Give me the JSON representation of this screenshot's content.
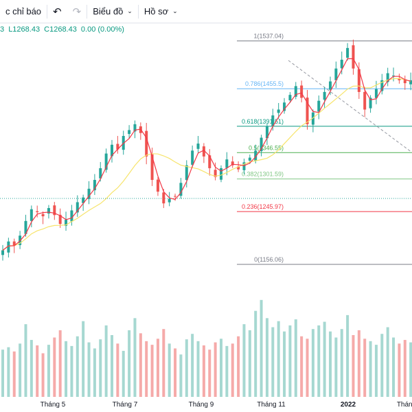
{
  "toolbar": {
    "indicators_label": "c chỉ báo",
    "undo_icon": "undo-icon",
    "redo_icon": "redo-icon",
    "chart_label": "Biểu đồ",
    "profile_label": "Hồ sơ"
  },
  "ohlc": {
    "prefix": "3",
    "low": "L1268.43",
    "close": "C1268.43",
    "change": "0.00 (0.00%)"
  },
  "colors": {
    "up": "#26a69a",
    "down": "#ef5350",
    "ma_fast": "#f23645",
    "ma_slow": "#f7e46b",
    "fib_1": "#787b86",
    "fib_0786": "#64b5f6",
    "fib_0618": "#089981",
    "fib_05": "#4caf50",
    "fib_0382": "#81c784",
    "fib_0236": "#f23645",
    "fib_0": "#787b86"
  },
  "fib_levels": [
    {
      "label": "1(1537.04)",
      "value": 1537.04,
      "key": "fib_1"
    },
    {
      "label": "0.786(1455.5)",
      "value": 1455.5,
      "key": "fib_0786"
    },
    {
      "label": "0.618(1391.51)",
      "value": 1391.51,
      "key": "fib_0618"
    },
    {
      "label": "0.5(1346.55)",
      "value": 1346.55,
      "key": "fib_05"
    },
    {
      "label": "0.382(1301.59)",
      "value": 1301.59,
      "key": "fib_0382"
    },
    {
      "label": "0.236(1245.97)",
      "value": 1245.97,
      "key": "fib_0236"
    },
    {
      "label": "0(1156.06)",
      "value": 1156.06,
      "key": "fib_0"
    }
  ],
  "x_axis": [
    "Tháng 5",
    "Tháng 7",
    "Tháng 9",
    "Tháng 11",
    "2022",
    "Tháng"
  ],
  "chart_data": {
    "type": "candlestick",
    "y_range": [
      1115,
      1560
    ],
    "price_series": [
      1180,
      1195,
      1188,
      1205,
      1230,
      1250,
      1245,
      1238,
      1252,
      1240,
      1225,
      1232,
      1248,
      1262,
      1270,
      1285,
      1300,
      1320,
      1345,
      1360,
      1352,
      1375,
      1385,
      1395,
      1380,
      1340,
      1300,
      1280,
      1260,
      1268,
      1272,
      1295,
      1325,
      1350,
      1362,
      1340,
      1320,
      1305,
      1320,
      1335,
      1325,
      1318,
      1330,
      1338,
      1350,
      1372,
      1392,
      1410,
      1420,
      1432,
      1445,
      1460,
      1440,
      1395,
      1415,
      1435,
      1450,
      1468,
      1490,
      1505,
      1525,
      1490,
      1450,
      1420,
      1440,
      1455,
      1470,
      1482,
      1478,
      1470,
      1465,
      1470
    ],
    "volume_series": [
      78,
      82,
      75,
      88,
      120,
      94,
      85,
      72,
      86,
      98,
      110,
      92,
      84,
      100,
      125,
      90,
      80,
      95,
      118,
      102,
      88,
      76,
      110,
      130,
      105,
      92,
      86,
      96,
      112,
      88,
      80,
      70,
      95,
      104,
      92,
      85,
      78,
      90,
      96,
      84,
      88,
      100,
      120,
      110,
      142,
      160,
      130,
      115,
      125,
      108,
      118,
      128,
      100,
      96,
      112,
      118,
      124,
      108,
      98,
      112,
      135,
      102,
      110,
      96,
      92,
      86,
      104,
      115,
      98,
      88,
      94,
      90
    ]
  }
}
